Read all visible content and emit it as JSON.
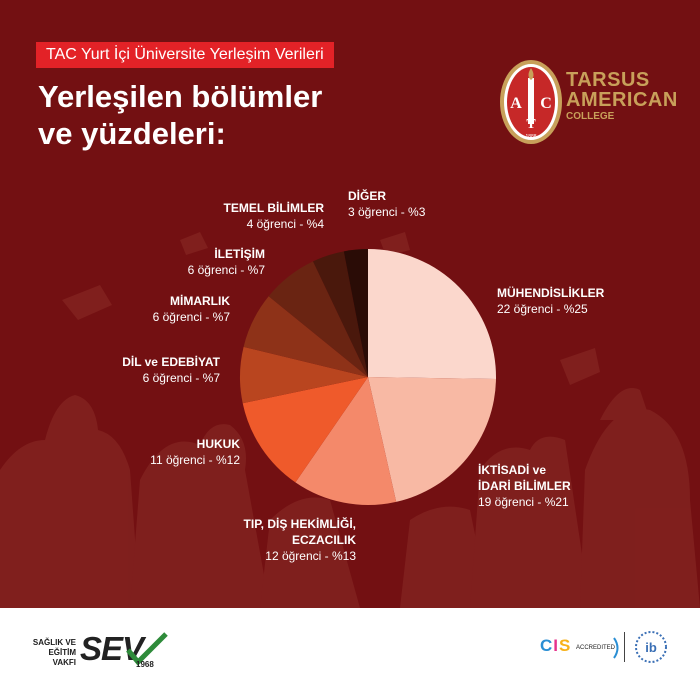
{
  "header": {
    "tag": "TAC Yurt İçi Üniversite Yerleşim Verileri",
    "title_line1": "Yerleşilen bölümler",
    "title_line2": "ve yüzdeleri:"
  },
  "logo": {
    "letters": [
      "A",
      "C",
      "T"
    ],
    "year": "1888",
    "name_line1": "TARSUS",
    "name_line2": "AMERICAN",
    "name_line3": "COLLEGE"
  },
  "chart_data": {
    "type": "pie",
    "start_angle_deg": 0,
    "direction": "clockwise",
    "slices": [
      {
        "name": "MÜHENDİSLİKLER",
        "value_text": "22 öğrenci - %25",
        "students": 22,
        "percent": 25,
        "color": "#fbd7cc"
      },
      {
        "name": "İKTİSADİ ve İDARİ BİLİMLER",
        "value_text": "19 öğrenci - %21",
        "students": 19,
        "percent": 21,
        "color": "#f8b9a4"
      },
      {
        "name": "TIP, DİŞ HEKİMLİĞİ, ECZACILIK",
        "value_text": "12 öğrenci - %13",
        "students": 12,
        "percent": 13,
        "color": "#f4896a"
      },
      {
        "name": "HUKUK",
        "value_text": "11 öğrenci - %12",
        "students": 11,
        "percent": 12,
        "color": "#ef5a2b"
      },
      {
        "name": "DİL ve EDEBİYAT",
        "value_text": "6 öğrenci - %7",
        "students": 6,
        "percent": 7,
        "color": "#b9451f"
      },
      {
        "name": "MİMARLIK",
        "value_text": "6 öğrenci - %7",
        "students": 6,
        "percent": 7,
        "color": "#8e3218"
      },
      {
        "name": "İLETİŞİM",
        "value_text": "6 öğrenci - %7",
        "students": 6,
        "percent": 7,
        "color": "#6a2412"
      },
      {
        "name": "TEMEL BİLİMLER",
        "value_text": "4 öğrenci - %4",
        "students": 4,
        "percent": 4,
        "color": "#4a180c"
      },
      {
        "name": "DİĞER",
        "value_text": "3 öğrenci - %3",
        "students": 3,
        "percent": 3,
        "color": "#2a0c06"
      }
    ]
  },
  "labels": {
    "muh_name": "MÜHENDİSLİKLER",
    "muh_val": "22 öğrenci - %25",
    "iib_name1": "İKTİSADİ ve",
    "iib_name2": "İDARİ BİLİMLER",
    "iib_val": "19 öğrenci - %21",
    "tip_name1": "TIP, DİŞ HEKİMLİĞİ,",
    "tip_name2": "ECZACILIK",
    "tip_val": "12 öğrenci - %13",
    "huk_name": "HUKUK",
    "huk_val": "11 öğrenci - %12",
    "dil_name": "DİL ve EDEBİYAT",
    "dil_val": "6 öğrenci - %7",
    "mim_name": "MİMARLIK",
    "mim_val": "6 öğrenci - %7",
    "ilt_name": "İLETİŞİM",
    "ilt_val": "6 öğrenci - %7",
    "tem_name": "TEMEL BİLİMLER",
    "tem_val": "4 öğrenci - %4",
    "dig_name": "DİĞER",
    "dig_val": "3 öğrenci - %3"
  },
  "footer": {
    "sev_small1": "SAĞLIK VE",
    "sev_small2": "EĞİTİM",
    "sev_small3": "VAKFI",
    "sev_big": "SEV",
    "sev_year": "1968",
    "cis_c": "C",
    "cis_i": "I",
    "cis_s": "S",
    "cis_accredited": "ACCREDITED",
    "ib": "ib"
  },
  "colors": {
    "background": "#731012",
    "tag": "#e32227",
    "logo_gold": "#c8a05a"
  }
}
